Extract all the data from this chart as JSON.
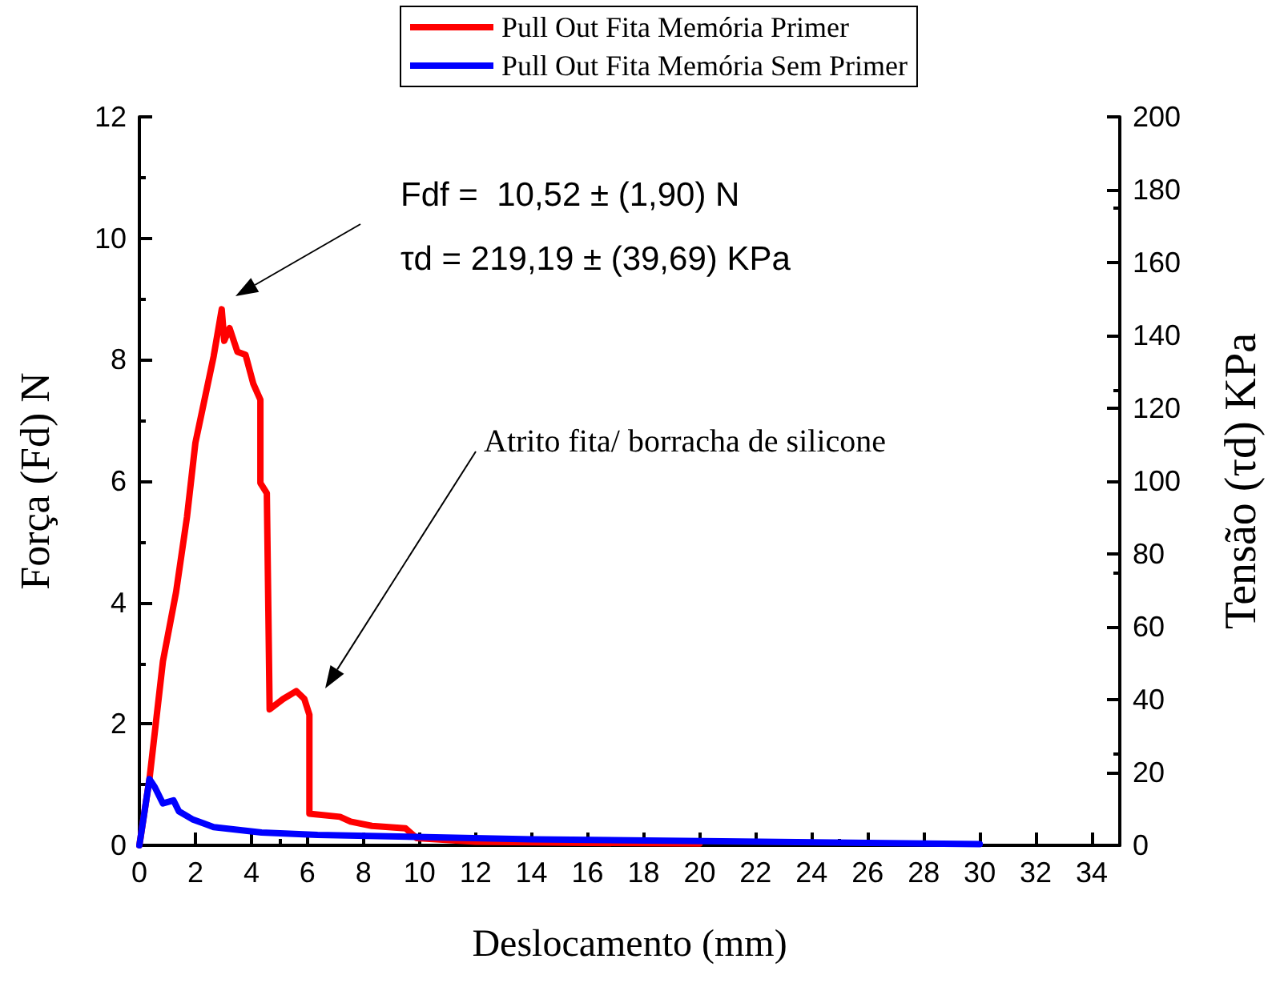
{
  "chart_data": {
    "type": "line",
    "xlabel": "Deslocamento (mm)",
    "ylabel": "Força (Fd) N",
    "y2label": "Tensão (τd) KPa",
    "xlim": [
      0,
      35
    ],
    "xticks": [
      0,
      2,
      4,
      6,
      8,
      10,
      12,
      14,
      16,
      18,
      20,
      22,
      24,
      26,
      28,
      30,
      32,
      34
    ],
    "ylim": [
      0,
      12
    ],
    "yticks": [
      0,
      2,
      4,
      6,
      8,
      10,
      12
    ],
    "y2lim": [
      0,
      200
    ],
    "y2ticks": [
      0,
      20,
      40,
      60,
      80,
      100,
      120,
      140,
      160,
      180,
      200
    ],
    "grid": false,
    "legend": "top",
    "marker": "none",
    "line_style": "solid",
    "annotations": [
      "Fdf =  10,52 ± (1,90) N\nτd = 219,19 ± (39,69) KPa",
      "Atrito fita/ borracha de silicone"
    ],
    "series": [
      {
        "name": "Pull Out Fita Memória Primer",
        "color": "#ff0000",
        "x": [
          0,
          0.36,
          0.84,
          1.31,
          1.7,
          2.0,
          2.65,
          2.94,
          3.03,
          3.22,
          3.5,
          3.79,
          4.07,
          4.32,
          4.32,
          4.55,
          4.65,
          5.13,
          5.6,
          5.89,
          6.07,
          6.07,
          7.16,
          7.54,
          8.3,
          9.5,
          9.9,
          12,
          16,
          20
        ],
        "values": [
          0,
          1.09,
          3.03,
          4.17,
          5.41,
          6.63,
          8.05,
          8.83,
          8.31,
          8.52,
          8.13,
          8.08,
          7.6,
          7.34,
          5.97,
          5.8,
          2.24,
          2.41,
          2.54,
          2.41,
          2.15,
          0.52,
          0.47,
          0.39,
          0.32,
          0.28,
          0.12,
          0.06,
          0.04,
          0.03
        ]
      },
      {
        "name": "Pull Out Fita Memória Sem Primer",
        "color": "#0000ff",
        "x": [
          0,
          0.36,
          0.55,
          0.84,
          1.22,
          1.41,
          1.89,
          2.65,
          4.36,
          6.36,
          14,
          30
        ],
        "values": [
          0,
          1.09,
          0.96,
          0.69,
          0.74,
          0.56,
          0.43,
          0.3,
          0.21,
          0.17,
          0.1,
          0.02
        ]
      }
    ]
  }
}
